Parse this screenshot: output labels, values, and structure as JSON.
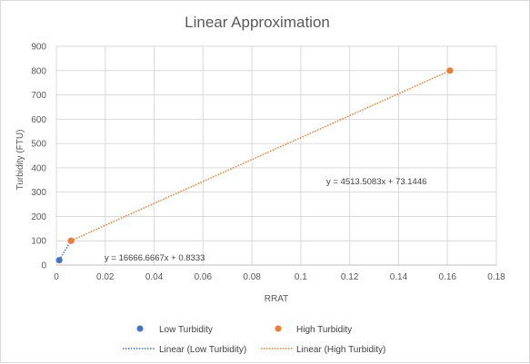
{
  "chart_data": {
    "type": "scatter",
    "title": "Linear Approximation",
    "xlabel": "RRAT",
    "ylabel": "Turbidity (FTU)",
    "xlim": [
      0,
      0.18
    ],
    "ylim": [
      0,
      900
    ],
    "x_ticks": [
      "0",
      "0.02",
      "0.04",
      "0.06",
      "0.08",
      "0.1",
      "0.12",
      "0.14",
      "0.16",
      "0.18"
    ],
    "y_ticks": [
      "0",
      "100",
      "200",
      "300",
      "400",
      "500",
      "600",
      "700",
      "800",
      "900"
    ],
    "grid": true,
    "legend_placement": "bottom",
    "series": [
      {
        "name": "Low Turbidity",
        "color": "#4472C4",
        "points": [
          {
            "x": 0.0012,
            "y": 20
          },
          {
            "x": 0.006,
            "y": 100
          }
        ],
        "trendline": {
          "name": "Linear (Low Turbidity)",
          "slope": 16666.6667,
          "intercept": 0.8333,
          "x_range": [
            0.0012,
            0.006
          ],
          "equation": "y = 16666.6667x + 0.8333"
        }
      },
      {
        "name": "High Turbidity",
        "color": "#ED7D31",
        "points": [
          {
            "x": 0.006,
            "y": 100
          },
          {
            "x": 0.161,
            "y": 800
          }
        ],
        "trendline": {
          "name": "Linear (High Turbidity)",
          "slope": 4513.5083,
          "intercept": 73.1446,
          "x_range": [
            0.006,
            0.161
          ],
          "equation": "y = 4513.5083x + 73.1446"
        }
      }
    ]
  }
}
